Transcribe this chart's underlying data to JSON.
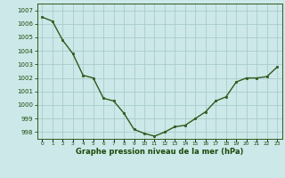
{
  "hours": [
    0,
    1,
    2,
    3,
    4,
    5,
    6,
    7,
    8,
    9,
    10,
    11,
    12,
    13,
    14,
    15,
    16,
    17,
    18,
    19,
    20,
    21,
    22,
    23
  ],
  "pressure": [
    1006.5,
    1006.2,
    1004.8,
    1003.8,
    1002.2,
    1002.0,
    1000.5,
    1000.3,
    999.4,
    998.2,
    997.9,
    997.7,
    998.0,
    998.4,
    998.5,
    999.0,
    999.5,
    1000.3,
    1000.6,
    1001.7,
    1002.0,
    1002.0,
    1002.1,
    1002.8
  ],
  "line_color": "#2d5a1b",
  "marker_color": "#2d5a1b",
  "bg_color": "#cce8e8",
  "grid_color": "#aacccc",
  "axis_label_color": "#1a4a0a",
  "xlabel": "Graphe pression niveau de la mer (hPa)",
  "ylim": [
    997.5,
    1007.5
  ],
  "yticks": [
    998,
    999,
    1000,
    1001,
    1002,
    1003,
    1004,
    1005,
    1006,
    1007
  ],
  "xlim": [
    -0.5,
    23.5
  ],
  "spine_color": "#2d5a1b"
}
